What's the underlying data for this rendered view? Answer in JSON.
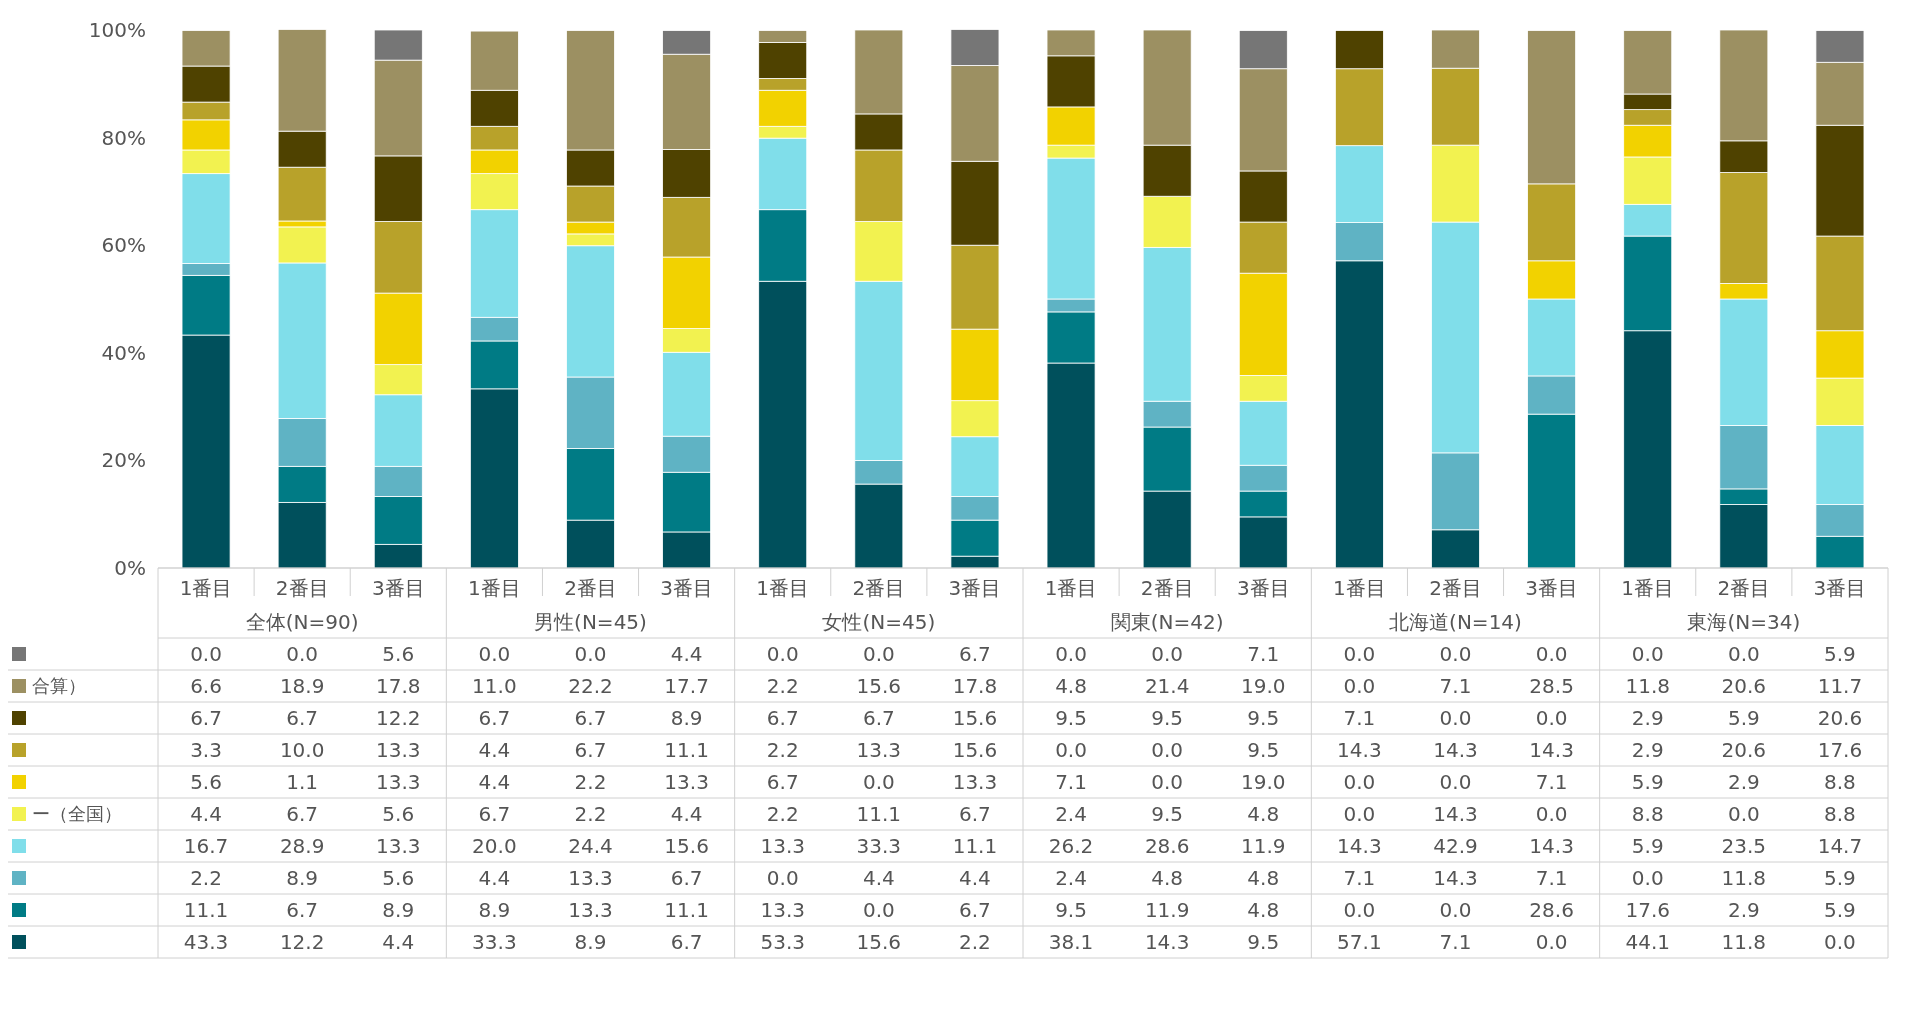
{
  "chart_data": {
    "type": "bar",
    "stacked": true,
    "grid": false,
    "legend": "left",
    "categories": [
      "1番目",
      "2番目",
      "3番目",
      "1番目",
      "2番目",
      "3番目",
      "1番目",
      "2番目",
      "3番目",
      "1番目",
      "2番目",
      "3番目",
      "1番目",
      "2番目",
      "3番目",
      "1番目",
      "2番目",
      "3番目"
    ],
    "annotations": [
      "全体(N=90)",
      "男性(N=45)",
      "女性(N=45)",
      "関東(N=42)",
      "北海道(N=14)",
      "東海(N=34)"
    ],
    "ylim": [
      0,
      100
    ],
    "yticks": [
      {
        "value": 0,
        "label": "0%"
      },
      {
        "value": 20,
        "label": "20%"
      },
      {
        "value": 40,
        "label": "40%"
      },
      {
        "value": 60,
        "label": "60%"
      },
      {
        "value": 80,
        "label": "80%"
      },
      {
        "value": 100,
        "label": "100%"
      }
    ],
    "series": [
      {
        "color": "#00505c",
        "values": [
          43.3,
          12.2,
          4.4,
          33.3,
          8.9,
          6.7,
          53.3,
          15.6,
          2.2,
          38.1,
          14.3,
          9.5,
          57.1,
          7.1,
          0.0,
          44.1,
          11.8,
          0.0
        ],
        "value_labels": [
          "43.3",
          "12.2",
          "4.4",
          "33.3",
          "8.9",
          "6.7",
          "53.3",
          "15.6",
          "2.2",
          "38.1",
          "14.3",
          "9.5",
          "57.1",
          "7.1",
          "0.0",
          "44.1",
          "11.8",
          "0.0"
        ]
      },
      {
        "color": "#007b85",
        "values": [
          11.1,
          6.7,
          8.9,
          8.9,
          13.3,
          11.1,
          13.3,
          0.0,
          6.7,
          9.5,
          11.9,
          4.8,
          0.0,
          0.0,
          28.6,
          17.6,
          2.9,
          5.9
        ],
        "value_labels": [
          "11.1",
          "6.7",
          "8.9",
          "8.9",
          "13.3",
          "11.1",
          "13.3",
          "0.0",
          "6.7",
          "9.5",
          "11.9",
          "4.8",
          "0.0",
          "0.0",
          "28.6",
          "17.6",
          "2.9",
          "5.9"
        ]
      },
      {
        "color": "#5fb3c4",
        "values": [
          2.2,
          8.9,
          5.6,
          4.4,
          13.3,
          6.7,
          0.0,
          4.4,
          4.4,
          2.4,
          4.8,
          4.8,
          7.1,
          14.3,
          7.1,
          0.0,
          11.8,
          5.9
        ],
        "value_labels": [
          "2.2",
          "8.9",
          "5.6",
          "4.4",
          "13.3",
          "6.7",
          "0.0",
          "4.4",
          "4.4",
          "2.4",
          "4.8",
          "4.8",
          "7.1",
          "14.3",
          "7.1",
          "0.0",
          "11.8",
          "5.9"
        ]
      },
      {
        "color": "#80deea",
        "values": [
          16.7,
          28.9,
          13.3,
          20.0,
          24.4,
          15.6,
          13.3,
          33.3,
          11.1,
          26.2,
          28.6,
          11.9,
          14.3,
          42.9,
          14.3,
          5.9,
          23.5,
          14.7
        ],
        "value_labels": [
          "16.7",
          "28.9",
          "13.3",
          "20.0",
          "24.4",
          "15.6",
          "13.3",
          "33.3",
          "11.1",
          "26.2",
          "28.6",
          "11.9",
          "14.3",
          "42.9",
          "14.3",
          "5.9",
          "23.5",
          "14.7"
        ]
      },
      {
        "name": "ー（全国）",
        "color": "#f2f250",
        "values": [
          4.4,
          6.7,
          5.6,
          6.7,
          2.2,
          4.4,
          2.2,
          11.1,
          6.7,
          2.4,
          9.5,
          4.8,
          0.0,
          14.3,
          0.0,
          8.8,
          0.0,
          8.8
        ],
        "value_labels": [
          "4.4",
          "6.7",
          "5.6",
          "6.7",
          "2.2",
          "4.4",
          "2.2",
          "11.1",
          "6.7",
          "2.4",
          "9.5",
          "4.8",
          "0.0",
          "14.3",
          "0.0",
          "8.8",
          "0.0",
          "8.8"
        ]
      },
      {
        "color": "#f2d200",
        "values": [
          5.6,
          1.1,
          13.3,
          4.4,
          2.2,
          13.3,
          6.7,
          0.0,
          13.3,
          7.1,
          0.0,
          19.0,
          0.0,
          0.0,
          7.1,
          5.9,
          2.9,
          8.8
        ],
        "value_labels": [
          "5.6",
          "1.1",
          "13.3",
          "4.4",
          "2.2",
          "13.3",
          "6.7",
          "0.0",
          "13.3",
          "7.1",
          "0.0",
          "19.0",
          "0.0",
          "0.0",
          "7.1",
          "5.9",
          "2.9",
          "8.8"
        ]
      },
      {
        "color": "#b8a22a",
        "values": [
          3.3,
          10.0,
          13.3,
          4.4,
          6.7,
          11.1,
          2.2,
          13.3,
          15.6,
          0.0,
          0.0,
          9.5,
          14.3,
          14.3,
          14.3,
          2.9,
          20.6,
          17.6
        ],
        "value_labels": [
          "3.3",
          "10.0",
          "13.3",
          "4.4",
          "6.7",
          "11.1",
          "2.2",
          "13.3",
          "15.6",
          "0.0",
          "0.0",
          "9.5",
          "14.3",
          "14.3",
          "14.3",
          "2.9",
          "20.6",
          "17.6"
        ]
      },
      {
        "color": "#4f4200",
        "values": [
          6.7,
          6.7,
          12.2,
          6.7,
          6.7,
          8.9,
          6.7,
          6.7,
          15.6,
          9.5,
          9.5,
          9.5,
          7.1,
          0.0,
          0.0,
          2.9,
          5.9,
          20.6
        ],
        "value_labels": [
          "6.7",
          "6.7",
          "12.2",
          "6.7",
          "6.7",
          "8.9",
          "6.7",
          "6.7",
          "15.6",
          "9.5",
          "9.5",
          "9.5",
          "7.1",
          "0.0",
          "0.0",
          "2.9",
          "5.9",
          "20.6"
        ]
      },
      {
        "name": "合算）",
        "color": "#9c9062",
        "values": [
          6.6,
          18.9,
          17.8,
          11.0,
          22.2,
          17.7,
          2.2,
          15.6,
          17.8,
          4.8,
          21.4,
          19.0,
          0.0,
          7.1,
          28.5,
          11.8,
          20.6,
          11.7
        ],
        "value_labels": [
          "6.6",
          "18.9",
          "17.8",
          "11.0",
          "22.2",
          "17.7",
          "2.2",
          "15.6",
          "17.8",
          "4.8",
          "21.4",
          "19.0",
          "0.0",
          "7.1",
          "28.5",
          "11.8",
          "20.6",
          "11.7"
        ]
      },
      {
        "color": "#767676",
        "values": [
          0.0,
          0.0,
          5.6,
          0.0,
          0.0,
          4.4,
          0.0,
          0.0,
          6.7,
          0.0,
          0.0,
          7.1,
          0.0,
          0.0,
          0.0,
          0.0,
          0.0,
          5.9
        ],
        "value_labels": [
          "0.0",
          "0.0",
          "5.6",
          "0.0",
          "0.0",
          "4.4",
          "0.0",
          "0.0",
          "6.7",
          "0.0",
          "0.0",
          "7.1",
          "0.0",
          "0.0",
          "0.0",
          "0.0",
          "0.0",
          "5.9"
        ]
      }
    ]
  }
}
